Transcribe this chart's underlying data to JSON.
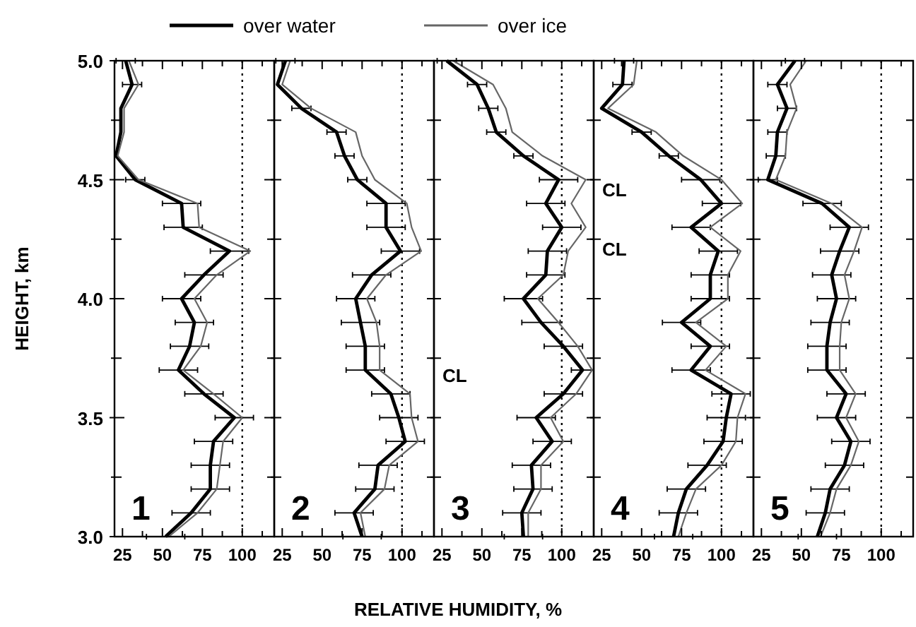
{
  "chart_data": [
    {
      "type": "line",
      "ylabel": "HEIGHT, km",
      "xlim": [
        20,
        120
      ],
      "ylim": [
        3,
        5
      ],
      "xticks": [
        25,
        {
          "value": 37.5,
          "label": null
        },
        50,
        {
          "value": 62.5,
          "label": null
        },
        75,
        {
          "value": 87.5,
          "label": null
        },
        100,
        {
          "value": 112.5,
          "label": null
        }
      ],
      "yticks": [
        {
          "value": 3,
          "label": "3.0"
        },
        {
          "value": 3.25,
          "label": null
        },
        {
          "value": 3.5,
          "label": "3.5"
        },
        {
          "value": 3.75,
          "label": null
        },
        {
          "value": 4,
          "label": "4.0"
        },
        {
          "value": 4.25,
          "label": null
        },
        {
          "value": 4.5,
          "label": "4.5"
        },
        {
          "value": 4.75,
          "label": null
        },
        {
          "value": 5,
          "label": "5.0"
        }
      ],
      "grid": false,
      "legend": "top",
      "marker": "none",
      "ref_lines": [
        {
          "axis": "x",
          "value": 100,
          "line_style": "dotted"
        }
      ],
      "annotations": [
        "1"
      ],
      "series": [
        {
          "name": "over water",
          "color": "#000000",
          "x": [
            27,
            31,
            24,
            24,
            21,
            33,
            62,
            63,
            92,
            76,
            62,
            70,
            67,
            60,
            76,
            95,
            82,
            80,
            80,
            68,
            52
          ],
          "values": [
            5,
            4.9,
            4.8,
            4.7,
            4.6,
            4.5,
            4.4,
            4.3,
            4.2,
            4.1,
            4,
            3.9,
            3.8,
            3.7,
            3.6,
            3.5,
            3.4,
            3.3,
            3.2,
            3.1,
            3
          ],
          "xerrors": [
            6,
            6,
            null,
            null,
            1,
            6,
            12,
            12,
            12,
            12,
            12,
            12,
            12,
            12,
            12,
            12,
            12,
            12,
            12,
            12,
            12
          ]
        },
        {
          "name": "over ice",
          "color": "#666666",
          "x": [
            29,
            35,
            26,
            26,
            22,
            35,
            72,
            73,
            105,
            84,
            70,
            78,
            74,
            63,
            82,
            100,
            88,
            86,
            84,
            72,
            54
          ],
          "values": [
            5,
            4.9,
            4.8,
            4.7,
            4.6,
            4.5,
            4.4,
            4.3,
            4.2,
            4.1,
            4,
            3.9,
            3.8,
            3.7,
            3.6,
            3.5,
            3.4,
            3.3,
            3.2,
            3.1,
            3
          ]
        }
      ]
    },
    {
      "type": "line",
      "xlim": [
        20,
        120
      ],
      "ylim": [
        3,
        5
      ],
      "xticks": [
        25,
        {
          "value": 37.5,
          "label": null
        },
        50,
        {
          "value": 62.5,
          "label": null
        },
        75,
        {
          "value": 87.5,
          "label": null
        },
        100,
        {
          "value": 112.5,
          "label": null
        }
      ],
      "yticks": [
        {
          "value": 3,
          "label": null
        },
        {
          "value": 3.25,
          "label": null
        },
        {
          "value": 3.5,
          "label": null
        },
        {
          "value": 3.75,
          "label": null
        },
        {
          "value": 4,
          "label": null
        },
        {
          "value": 4.25,
          "label": null
        },
        {
          "value": 4.5,
          "label": null
        },
        {
          "value": 4.75,
          "label": null
        },
        {
          "value": 5,
          "label": null
        }
      ],
      "tick_labels": "x",
      "grid": false,
      "marker": "none",
      "ref_lines": [
        {
          "axis": "x",
          "value": 100,
          "line_style": "dotted"
        }
      ],
      "annotations": [
        "2"
      ],
      "series": [
        {
          "color": "#000000",
          "x": [
            27,
            22,
            37,
            59,
            64,
            72,
            90,
            90,
            99,
            81,
            71,
            74,
            77,
            77,
            93,
            98,
            102,
            85,
            83,
            70,
            75
          ],
          "values": [
            5,
            4.9,
            4.8,
            4.7,
            4.6,
            4.5,
            4.4,
            4.3,
            4.2,
            4.1,
            4,
            3.9,
            3.8,
            3.7,
            3.6,
            3.5,
            3.4,
            3.3,
            3.2,
            3.1,
            3
          ],
          "xerrors": [
            6,
            null,
            6,
            6,
            6,
            6,
            12,
            12,
            12,
            12,
            12,
            12,
            12,
            12,
            12,
            12,
            12,
            12,
            12,
            12,
            12
          ]
        },
        {
          "color": "#666666",
          "x": [
            30,
            25,
            43,
            71,
            75,
            83,
            103,
            106,
            112,
            90,
            78,
            84,
            86,
            86,
            105,
            106,
            110,
            92,
            89,
            74,
            77
          ],
          "values": [
            5,
            4.9,
            4.8,
            4.7,
            4.6,
            4.5,
            4.4,
            4.3,
            4.2,
            4.1,
            4,
            3.9,
            3.8,
            3.7,
            3.6,
            3.5,
            3.4,
            3.3,
            3.2,
            3.1,
            3
          ]
        }
      ]
    },
    {
      "type": "line",
      "xlabel": "RELATIVE HUMIDITY, %",
      "xlim": [
        20,
        120
      ],
      "ylim": [
        3,
        5
      ],
      "xticks": [
        25,
        {
          "value": 37.5,
          "label": null
        },
        50,
        {
          "value": 62.5,
          "label": null
        },
        75,
        {
          "value": 87.5,
          "label": null
        },
        100,
        {
          "value": 112.5,
          "label": null
        }
      ],
      "yticks": [
        {
          "value": 3,
          "label": null
        },
        {
          "value": 3.25,
          "label": null
        },
        {
          "value": 3.5,
          "label": null
        },
        {
          "value": 3.75,
          "label": null
        },
        {
          "value": 4,
          "label": null
        },
        {
          "value": 4.25,
          "label": null
        },
        {
          "value": 4.5,
          "label": null
        },
        {
          "value": 4.75,
          "label": null
        },
        {
          "value": 5,
          "label": null
        }
      ],
      "tick_labels": "x",
      "grid": false,
      "marker": "none",
      "ref_lines": [
        {
          "axis": "x",
          "value": 100,
          "line_style": "dotted"
        }
      ],
      "annotations": [
        "3",
        "CL"
      ],
      "series": [
        {
          "color": "#000000",
          "x": [
            28,
            47,
            54,
            59,
            76,
            98,
            90,
            100,
            91,
            90,
            76,
            87,
            101,
            113,
            101,
            84,
            94,
            81,
            82,
            75,
            76
          ],
          "values": [
            5,
            4.9,
            4.8,
            4.7,
            4.6,
            4.5,
            4.4,
            4.3,
            4.2,
            4.1,
            4,
            3.9,
            3.8,
            3.7,
            3.6,
            3.5,
            3.4,
            3.3,
            3.2,
            3.1,
            3
          ],
          "xerrors": [
            6,
            6,
            6,
            6,
            6,
            12,
            12,
            12,
            12,
            12,
            12,
            12,
            12,
            7,
            12,
            12,
            12,
            12,
            12,
            12,
            12
          ]
        },
        {
          "color": "#666666",
          "x": [
            32,
            57,
            65,
            69,
            88,
            115,
            106,
            115,
            104,
            101,
            85,
            98,
            110,
            119,
            109,
            93,
            101,
            87,
            87,
            79,
            79
          ],
          "values": [
            5,
            4.9,
            4.8,
            4.7,
            4.6,
            4.5,
            4.4,
            4.3,
            4.2,
            4.1,
            4,
            3.9,
            3.8,
            3.7,
            3.6,
            3.5,
            3.4,
            3.3,
            3.2,
            3.1,
            3
          ]
        }
      ]
    },
    {
      "type": "line",
      "xlim": [
        20,
        120
      ],
      "ylim": [
        3,
        5
      ],
      "xticks": [
        25,
        {
          "value": 37.5,
          "label": null
        },
        50,
        {
          "value": 62.5,
          "label": null
        },
        75,
        {
          "value": 87.5,
          "label": null
        },
        100,
        {
          "value": 112.5,
          "label": null
        }
      ],
      "yticks": [
        {
          "value": 3,
          "label": null
        },
        {
          "value": 3.25,
          "label": null
        },
        {
          "value": 3.5,
          "label": null
        },
        {
          "value": 3.75,
          "label": null
        },
        {
          "value": 4,
          "label": null
        },
        {
          "value": 4.25,
          "label": null
        },
        {
          "value": 4.5,
          "label": null
        },
        {
          "value": 4.75,
          "label": null
        },
        {
          "value": 5,
          "label": null
        }
      ],
      "tick_labels": "x",
      "grid": false,
      "marker": "none",
      "ref_lines": [
        {
          "axis": "x",
          "value": 100,
          "line_style": "dotted"
        }
      ],
      "annotations": [
        "4",
        "CL",
        "CL"
      ],
      "series": [
        {
          "color": "#000000",
          "x": [
            39,
            38,
            25,
            50,
            67,
            87,
            100,
            81,
            98,
            93,
            93,
            75,
            93,
            81,
            106,
            103,
            101,
            91,
            78,
            73,
            70
          ],
          "values": [
            5,
            4.9,
            4.8,
            4.7,
            4.6,
            4.5,
            4.4,
            4.3,
            4.2,
            4.1,
            4,
            3.9,
            3.8,
            3.7,
            3.6,
            3.5,
            3.4,
            3.3,
            3.2,
            3.1,
            3
          ],
          "xerrors": [
            6,
            6,
            null,
            6,
            6,
            12,
            12,
            12,
            12,
            12,
            12,
            12,
            12,
            12,
            12,
            12,
            12,
            12,
            12,
            12,
            12
          ]
        },
        {
          "color": "#666666",
          "x": [
            47,
            45,
            29,
            59,
            76,
            100,
            113,
            93,
            112,
            104,
            104,
            84,
            103,
            90,
            115,
            110,
            109,
            100,
            84,
            78,
            73
          ],
          "values": [
            5,
            4.9,
            4.8,
            4.7,
            4.6,
            4.5,
            4.4,
            4.3,
            4.2,
            4.1,
            4,
            3.9,
            3.8,
            3.7,
            3.6,
            3.5,
            3.4,
            3.3,
            3.2,
            3.1,
            3
          ]
        }
      ]
    },
    {
      "type": "line",
      "xlim": [
        20,
        120
      ],
      "ylim": [
        3,
        5
      ],
      "xticks": [
        25,
        {
          "value": 37.5,
          "label": null
        },
        50,
        {
          "value": 62.5,
          "label": null
        },
        75,
        {
          "value": 87.5,
          "label": null
        },
        100,
        {
          "value": 112.5,
          "label": null
        }
      ],
      "yticks": [
        {
          "value": 3,
          "label": null
        },
        {
          "value": 3.25,
          "label": null
        },
        {
          "value": 3.5,
          "label": null
        },
        {
          "value": 3.75,
          "label": null
        },
        {
          "value": 4,
          "label": null
        },
        {
          "value": 4.25,
          "label": null
        },
        {
          "value": 4.5,
          "label": null
        },
        {
          "value": 4.75,
          "label": null
        },
        {
          "value": 5,
          "label": null
        }
      ],
      "tick_labels": "x",
      "grid": false,
      "marker": "none",
      "ref_lines": [
        {
          "axis": "x",
          "value": 100,
          "line_style": "dotted"
        }
      ],
      "annotations": [
        "5"
      ],
      "series": [
        {
          "color": "#000000",
          "x": [
            46,
            35,
            41,
            35,
            34,
            29,
            63,
            80,
            74,
            69,
            72,
            68,
            66,
            66,
            78,
            72,
            81,
            77,
            68,
            65,
            60
          ],
          "values": [
            5,
            4.9,
            4.8,
            4.7,
            4.6,
            4.5,
            4.4,
            4.3,
            4.2,
            4.1,
            4,
            3.9,
            3.8,
            3.7,
            3.6,
            3.5,
            3.4,
            3.3,
            3.2,
            3.1,
            3
          ],
          "xerrors": [
            6,
            6,
            6,
            6,
            6,
            6,
            12,
            12,
            12,
            12,
            12,
            12,
            12,
            12,
            12,
            12,
            12,
            12,
            12,
            12,
            12
          ]
        },
        {
          "color": "#666666",
          "x": [
            53,
            43,
            47,
            41,
            40,
            34,
            69,
            88,
            83,
            77,
            80,
            75,
            74,
            74,
            84,
            78,
            86,
            81,
            72,
            68,
            62
          ],
          "values": [
            5,
            4.9,
            4.8,
            4.7,
            4.6,
            4.5,
            4.4,
            4.3,
            4.2,
            4.1,
            4,
            3.9,
            3.8,
            3.7,
            3.6,
            3.5,
            3.4,
            3.3,
            3.2,
            3.1,
            3
          ]
        }
      ]
    }
  ]
}
